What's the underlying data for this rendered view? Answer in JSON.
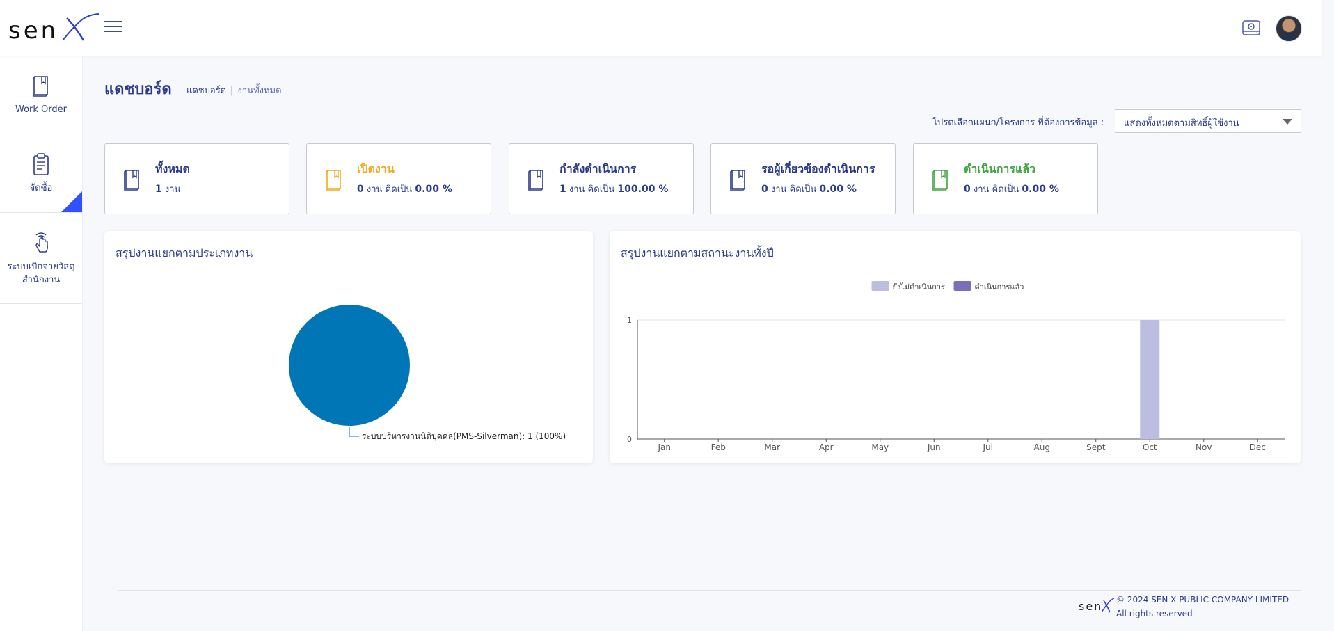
{
  "header": {
    "logo_text": "sen",
    "logo_mark": "X",
    "menu_icon": "hamburger-icon",
    "storage_icon": "hdd-icon",
    "avatar_icon": "user-avatar"
  },
  "sidebar": {
    "items": [
      {
        "label": "Work Order",
        "icon": "book-icon"
      },
      {
        "label": "จัดซื้อ",
        "icon": "clipboard-icon"
      },
      {
        "label_line1": "ระบบเบิกจ่ายวัสดุ",
        "label_line2": "สำนักงาน",
        "icon": "touch-hand-icon"
      }
    ]
  },
  "page": {
    "title": "แดชบอร์ด",
    "breadcrumb": [
      "แดชบอร์ด",
      "งานทั้งหมด"
    ]
  },
  "filter": {
    "label": "โปรดเลือกแผนก/โครงการ ที่ต้องการข้อมูล :",
    "value": "แสดงทั้งหมดตามสิทธิ์ผู้ใช้งาน"
  },
  "cards": [
    {
      "title": "ทั้งหมด",
      "count": "1",
      "unit": "งาน",
      "color": "#2b3a8c"
    },
    {
      "title": "เปิดงาน",
      "count": "0",
      "unit": "งาน คิดเป็น",
      "percent": "0.00 %",
      "color": "#f4a91c"
    },
    {
      "title": "กำลังดำเนินการ",
      "count": "1",
      "unit": "งาน คิดเป็น",
      "percent": "100.00 %",
      "color": "#2b3a8c"
    },
    {
      "title": "รอผู้เกี่ยวข้องดำเนินการ",
      "count": "0",
      "unit": "งาน คิดเป็น",
      "percent": "0.00 %",
      "color": "#2b3a8c"
    },
    {
      "title": "ดำเนินการแล้ว",
      "count": "0",
      "unit": "งาน คิดเป็น",
      "percent": "0.00 %",
      "color": "#3fa33f"
    }
  ],
  "panels": {
    "pie_title": "สรุปงานแยกตามประเภทงาน",
    "bar_title": "สรุปงานแยกตามสถานะงานทั้งปี"
  },
  "chart_data": [
    {
      "type": "pie",
      "slices": [
        {
          "label": "ระบบบริหารงานนิติบุคคล(PMS-Silverman): 1 (100%)",
          "value": 1,
          "color": "#0076b6"
        }
      ]
    },
    {
      "type": "bar",
      "categories": [
        "Jan",
        "Feb",
        "Mar",
        "Apr",
        "May",
        "Jun",
        "Jul",
        "Aug",
        "Sept",
        "Oct",
        "Nov",
        "Dec"
      ],
      "series": [
        {
          "name": "ยังไม่ดำเนินการ",
          "color": "#bcbde0",
          "values": [
            0,
            0,
            0,
            0,
            0,
            0,
            0,
            0,
            0,
            1,
            0,
            0
          ]
        },
        {
          "name": "ดำเนินการแล้ว",
          "color": "#7b70b8",
          "values": [
            0,
            0,
            0,
            0,
            0,
            0,
            0,
            0,
            0,
            0,
            0,
            0
          ]
        }
      ],
      "ylim": [
        0,
        1
      ],
      "yticks": [
        "0",
        "1"
      ],
      "legend": "top-center",
      "stacked": true
    }
  ],
  "footer": {
    "copyright": "© 2024 SEN X PUBLIC COMPANY LIMITED",
    "rights": "All rights reserved",
    "logo_text": "sen"
  }
}
